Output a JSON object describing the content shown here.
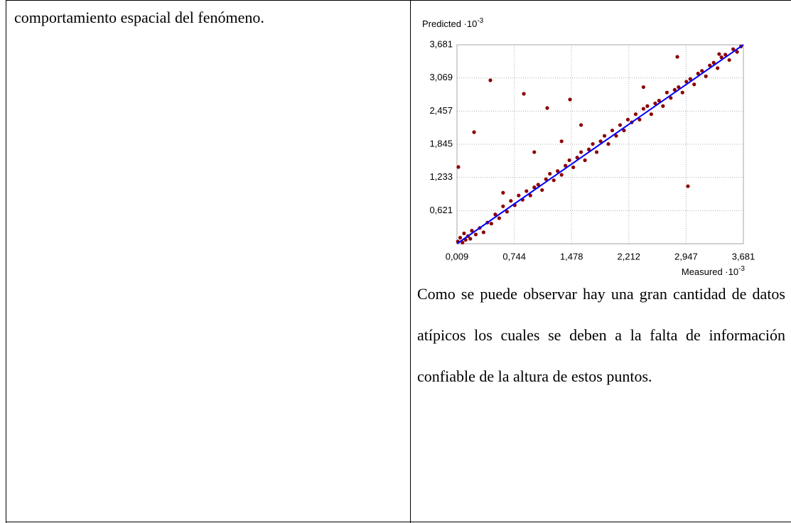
{
  "left_cell": {
    "text": "comportamiento espacial del fenómeno."
  },
  "right_cell": {
    "chart_data": {
      "type": "scatter",
      "ylabel": "Predicted ·10",
      "ylabel_exponent": "-3",
      "xlabel": "Measured ·10",
      "xlabel_exponent": "-3",
      "color": "#8b0000",
      "grid": true,
      "xlim": [
        0.009,
        3.681
      ],
      "ylim": [
        0.009,
        3.681
      ],
      "xticks": [
        {
          "value": 0.009,
          "label": "0,009"
        },
        {
          "value": 0.744,
          "label": "0,744"
        },
        {
          "value": 1.478,
          "label": "1,478"
        },
        {
          "value": 2.212,
          "label": "2,212"
        },
        {
          "value": 2.947,
          "label": "2,947"
        },
        {
          "value": 3.681,
          "label": "3,681"
        }
      ],
      "yticks": [
        {
          "value": 0.621,
          "label": "0,621"
        },
        {
          "value": 1.233,
          "label": "1,233"
        },
        {
          "value": 1.845,
          "label": "1,845"
        },
        {
          "value": 2.457,
          "label": "2,457"
        },
        {
          "value": 3.069,
          "label": "3,069"
        },
        {
          "value": 3.681,
          "label": "3,681"
        }
      ],
      "x": [
        0.02,
        0.05,
        0.08,
        0.1,
        0.12,
        0.15,
        0.18,
        0.2,
        0.25,
        0.3,
        0.35,
        0.4,
        0.45,
        0.5,
        0.55,
        0.6,
        0.65,
        0.7,
        0.75,
        0.8,
        0.85,
        0.9,
        0.95,
        1.0,
        1.05,
        1.1,
        1.15,
        1.2,
        1.25,
        1.3,
        1.35,
        1.4,
        1.45,
        1.5,
        1.55,
        1.6,
        1.65,
        1.7,
        1.75,
        1.8,
        1.85,
        1.9,
        1.95,
        2.0,
        2.05,
        2.1,
        2.15,
        2.2,
        2.25,
        2.3,
        2.35,
        2.4,
        2.45,
        2.5,
        2.55,
        2.6,
        2.65,
        2.7,
        2.75,
        2.8,
        2.85,
        2.9,
        2.95,
        3.0,
        3.05,
        3.1,
        3.15,
        3.2,
        3.25,
        3.3,
        3.35,
        3.4,
        3.45,
        3.5,
        3.55,
        3.6,
        3.65,
        1.35,
        1.6,
        2.4,
        0.437,
        0.866,
        1.166,
        1.458,
        0.228,
        0.027,
        2.97,
        2.834,
        3.37,
        1.0,
        0.6
      ],
      "values": [
        0.05,
        0.12,
        0.03,
        0.2,
        0.08,
        0.15,
        0.1,
        0.25,
        0.18,
        0.3,
        0.22,
        0.4,
        0.38,
        0.55,
        0.48,
        0.7,
        0.6,
        0.8,
        0.72,
        0.9,
        0.82,
        0.98,
        0.9,
        1.05,
        1.1,
        1.0,
        1.2,
        1.3,
        1.18,
        1.35,
        1.28,
        1.45,
        1.55,
        1.42,
        1.6,
        1.7,
        1.55,
        1.75,
        1.85,
        1.7,
        1.9,
        2.0,
        1.85,
        2.1,
        2.0,
        2.2,
        2.1,
        2.3,
        2.25,
        2.4,
        2.3,
        2.5,
        2.55,
        2.4,
        2.6,
        2.65,
        2.55,
        2.8,
        2.7,
        2.85,
        2.9,
        2.8,
        3.0,
        3.05,
        2.95,
        3.15,
        3.2,
        3.1,
        3.3,
        3.35,
        3.25,
        3.45,
        3.5,
        3.4,
        3.6,
        3.55,
        3.65,
        1.9,
        2.2,
        2.9,
        3.025,
        2.776,
        2.514,
        2.671,
        2.068,
        1.425,
        1.07,
        3.458,
        3.51,
        1.7,
        0.95
      ],
      "fit_line": {
        "color": "#0000ff",
        "x": [
          0.009,
          3.681
        ],
        "values": [
          0.009,
          3.681
        ]
      }
    },
    "text": "Como se puede observar hay una gran cantidad de datos atípicos los cuales se deben a la falta de información confiable de la altura de estos puntos."
  }
}
